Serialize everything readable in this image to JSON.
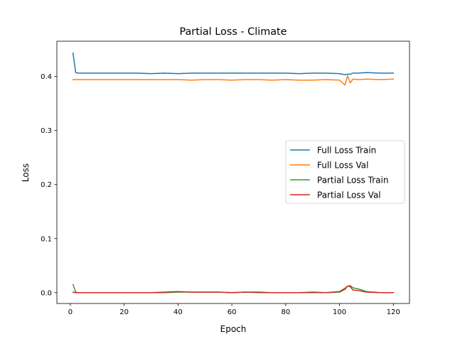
{
  "chart_data": {
    "type": "line",
    "title": "Partial Loss - Climate",
    "xlabel": "Epoch",
    "ylabel": "Loss",
    "xlim": [
      -5,
      126
    ],
    "ylim": [
      -0.02,
      0.465
    ],
    "xticks": [
      0,
      20,
      40,
      60,
      80,
      100,
      120
    ],
    "yticks": [
      0.0,
      0.1,
      0.2,
      0.3,
      0.4
    ],
    "ytick_labels": [
      "0.0",
      "0.1",
      "0.2",
      "0.3",
      "0.4"
    ],
    "grid": false,
    "legend_position": "center-right",
    "x": [
      1,
      2,
      3,
      5,
      10,
      15,
      20,
      25,
      30,
      35,
      40,
      45,
      50,
      55,
      60,
      65,
      70,
      75,
      80,
      85,
      90,
      95,
      100,
      102,
      103,
      104,
      105,
      107,
      110,
      115,
      120
    ],
    "series": [
      {
        "name": "Full Loss Train",
        "color": "#1f77b4",
        "values": [
          0.443,
          0.407,
          0.406,
          0.406,
          0.406,
          0.406,
          0.406,
          0.406,
          0.405,
          0.406,
          0.405,
          0.406,
          0.406,
          0.406,
          0.406,
          0.406,
          0.406,
          0.406,
          0.406,
          0.405,
          0.406,
          0.406,
          0.405,
          0.403,
          0.404,
          0.404,
          0.406,
          0.406,
          0.407,
          0.406,
          0.406
        ]
      },
      {
        "name": "Full Loss Val",
        "color": "#ff7f0e",
        "values": [
          0.394,
          0.394,
          0.394,
          0.394,
          0.394,
          0.394,
          0.394,
          0.394,
          0.394,
          0.394,
          0.394,
          0.393,
          0.394,
          0.394,
          0.393,
          0.394,
          0.394,
          0.393,
          0.394,
          0.393,
          0.393,
          0.394,
          0.393,
          0.384,
          0.401,
          0.388,
          0.395,
          0.394,
          0.395,
          0.394,
          0.395
        ]
      },
      {
        "name": "Partial Loss Train",
        "color": "#2ca02c",
        "values": [
          0.015,
          0.001,
          0.0,
          0.0,
          0.0,
          0.0,
          0.0,
          0.0,
          0.0,
          0.0,
          0.001,
          0.001,
          0.001,
          0.001,
          0.0,
          0.001,
          0.0,
          0.0,
          0.0,
          0.0,
          0.0,
          0.0,
          0.001,
          0.006,
          0.012,
          0.013,
          0.009,
          0.007,
          0.002,
          0.0,
          0.0
        ]
      },
      {
        "name": "Partial Loss Val",
        "color": "#d62728",
        "values": [
          0.001,
          0.0,
          0.0,
          0.0,
          0.0,
          0.0,
          0.0,
          0.0,
          0.0,
          0.001,
          0.002,
          0.001,
          0.001,
          0.001,
          0.0,
          0.001,
          0.001,
          0.0,
          0.0,
          0.0,
          0.001,
          0.0,
          0.002,
          0.008,
          0.012,
          0.011,
          0.005,
          0.004,
          0.001,
          0.0,
          0.0
        ]
      }
    ]
  }
}
